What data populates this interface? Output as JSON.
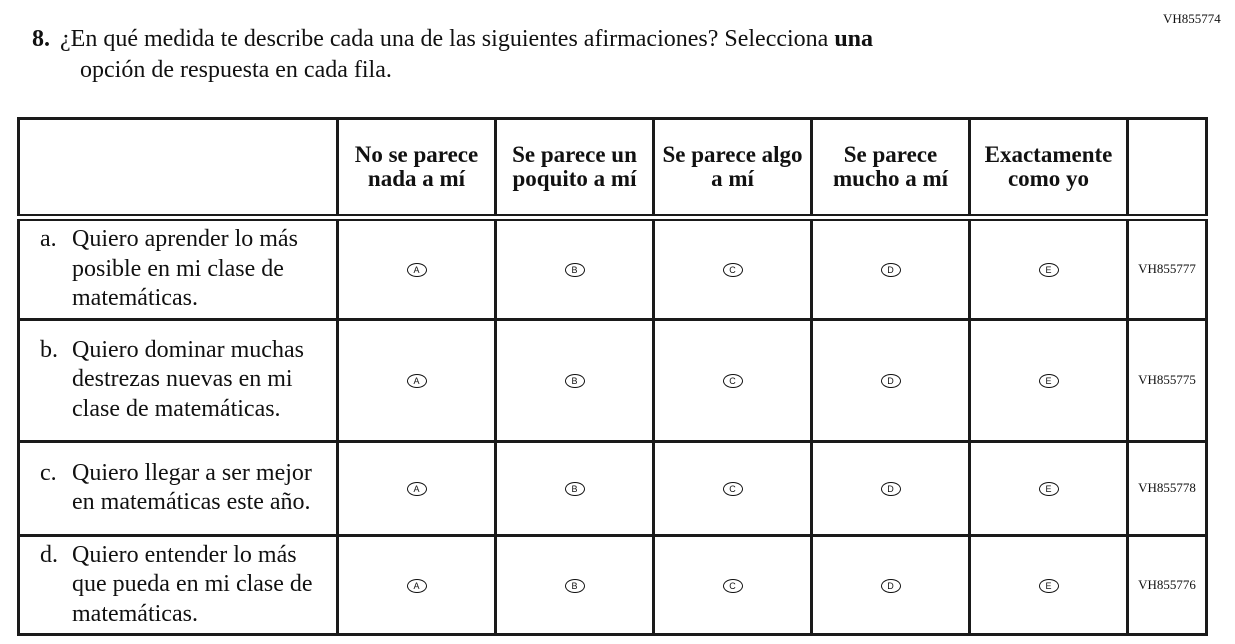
{
  "item_code": "VH855774",
  "question": {
    "number": "8.",
    "text_before": "¿En qué medida te describe cada una de las siguientes afirmaciones? Selecciona ",
    "bold": "una",
    "line2": "opción de respuesta en cada fila."
  },
  "columns": [
    "No se parece nada a mí",
    "Se parece un poquito a mí",
    "Se parece algo a mí",
    "Se parece mucho a mí",
    "Exactamente como yo"
  ],
  "options": [
    "A",
    "B",
    "C",
    "D",
    "E"
  ],
  "rows": [
    {
      "letter": "a.",
      "text": "Quiero aprender lo más posible en mi clase de matemáticas.",
      "id": "VH855777"
    },
    {
      "letter": "b.",
      "text": "Quiero dominar muchas destrezas nuevas en mi clase de matemáticas.",
      "id": "VH855775"
    },
    {
      "letter": "c.",
      "text": "Quiero llegar a ser mejor en matemáticas este año.",
      "id": "VH855778"
    },
    {
      "letter": "d.",
      "text": "Quiero entender lo más que pueda en mi clase de matemáticas.",
      "id": "VH855776"
    }
  ]
}
